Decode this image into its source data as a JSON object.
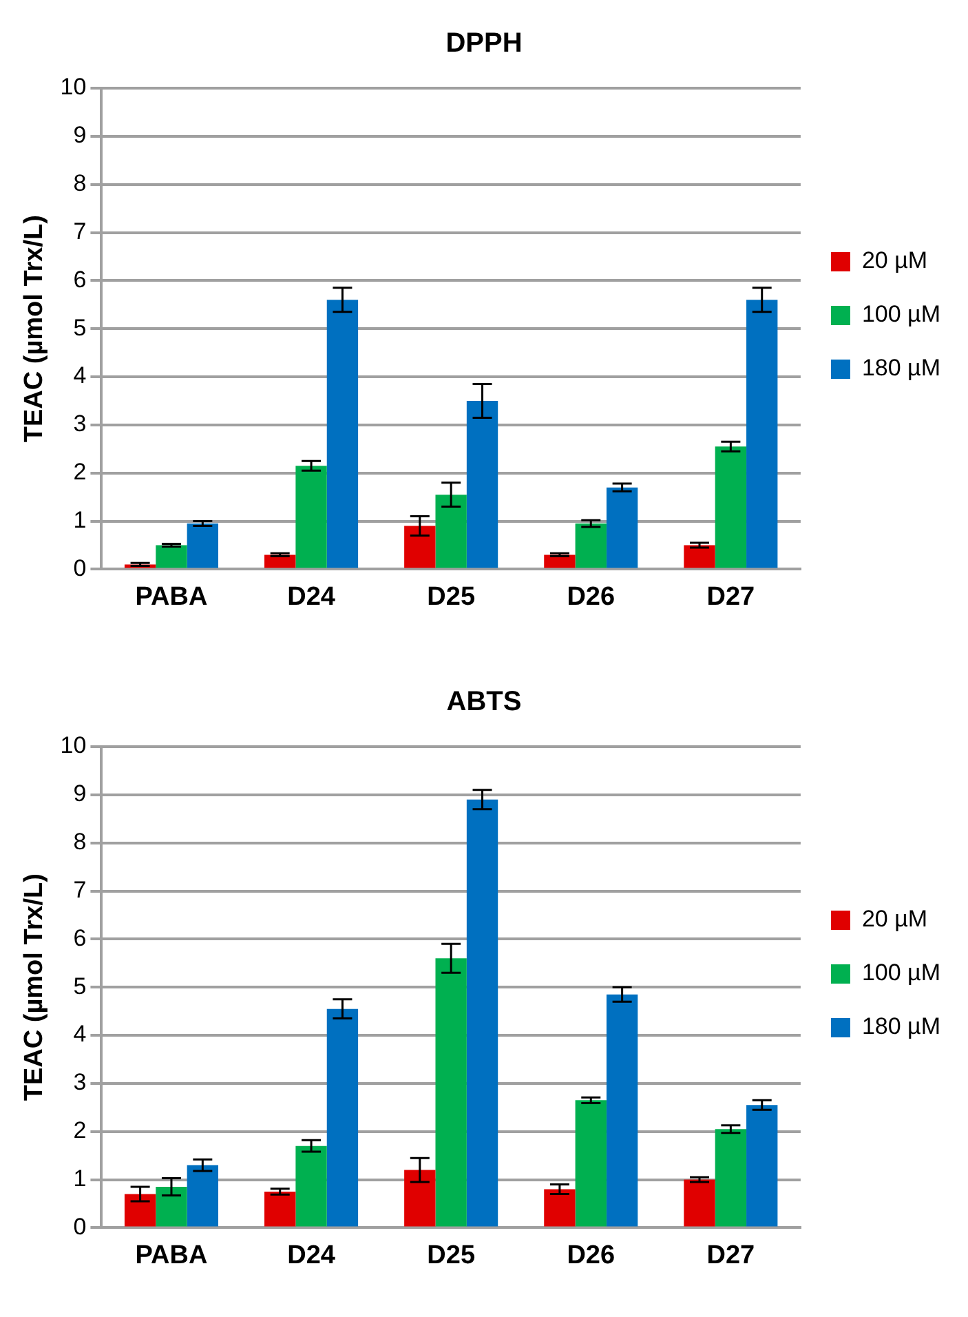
{
  "chart_data": [
    {
      "type": "bar",
      "title": "DPPH",
      "ylabel": "TEAC (µmol Trx/L)",
      "categories": [
        "PABA",
        "D24",
        "D25",
        "D26",
        "D27"
      ],
      "ylim": [
        0,
        10
      ],
      "yticks": [
        0,
        1,
        2,
        3,
        4,
        5,
        6,
        7,
        8,
        9,
        10
      ],
      "grid": "y",
      "legend": "right",
      "series": [
        {
          "name": "20 µM",
          "color": "#e00000",
          "values": [
            0.1,
            0.3,
            0.9,
            0.3,
            0.5
          ],
          "errors": [
            0.03,
            0.03,
            0.2,
            0.03,
            0.05
          ]
        },
        {
          "name": "100 µM",
          "color": "#00b050",
          "values": [
            0.5,
            2.15,
            1.55,
            0.95,
            2.55
          ],
          "errors": [
            0.03,
            0.1,
            0.25,
            0.07,
            0.1
          ]
        },
        {
          "name": "180 µM",
          "color": "#0070c0",
          "values": [
            0.95,
            5.6,
            3.5,
            1.7,
            5.6
          ],
          "errors": [
            0.05,
            0.25,
            0.35,
            0.08,
            0.25
          ]
        }
      ]
    },
    {
      "type": "bar",
      "title": "ABTS",
      "ylabel": "TEAC (µmol Trx/L)",
      "categories": [
        "PABA",
        "D24",
        "D25",
        "D26",
        "D27"
      ],
      "ylim": [
        0,
        10
      ],
      "yticks": [
        0,
        1,
        2,
        3,
        4,
        5,
        6,
        7,
        8,
        9,
        10
      ],
      "grid": "y",
      "legend": "right",
      "series": [
        {
          "name": "20 µM",
          "color": "#e00000",
          "values": [
            0.7,
            0.75,
            1.2,
            0.8,
            1.0
          ],
          "errors": [
            0.15,
            0.06,
            0.25,
            0.1,
            0.05
          ]
        },
        {
          "name": "100 µM",
          "color": "#00b050",
          "values": [
            0.85,
            1.7,
            5.6,
            2.65,
            2.05
          ],
          "errors": [
            0.18,
            0.12,
            0.3,
            0.06,
            0.08
          ]
        },
        {
          "name": "180 µM",
          "color": "#0070c0",
          "values": [
            1.3,
            4.55,
            8.9,
            4.85,
            2.55
          ],
          "errors": [
            0.12,
            0.2,
            0.2,
            0.15,
            0.1
          ]
        }
      ]
    }
  ]
}
